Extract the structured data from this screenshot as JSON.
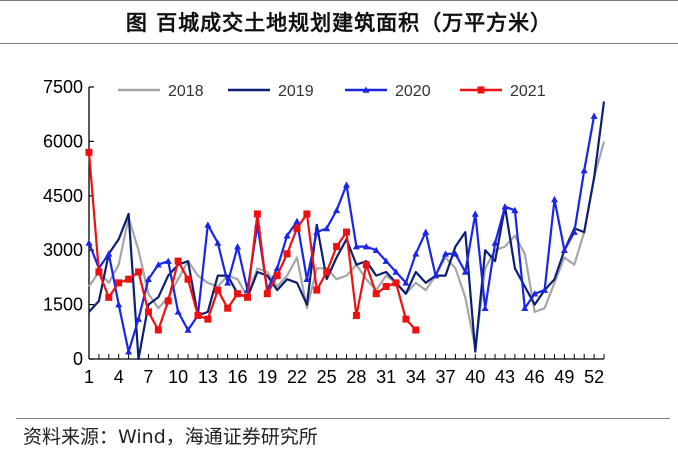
{
  "title": "图  百城成交土地规划建筑面积（万平方米）",
  "source": "资料来源：Wind，海通证券研究所",
  "chart_data": {
    "type": "line",
    "title": "图  百城成交土地规划建筑面积（万平方米）",
    "xlabel": "",
    "ylabel": "",
    "xlim": [
      1,
      53
    ],
    "ylim": [
      0,
      7500
    ],
    "y_ticks": [
      "0",
      "1500",
      "3000",
      "4500",
      "6000",
      "7500"
    ],
    "x_ticks": [
      "1",
      "4",
      "7",
      "10",
      "13",
      "16",
      "19",
      "22",
      "25",
      "28",
      "31",
      "34",
      "37",
      "40",
      "43",
      "46",
      "49",
      "52"
    ],
    "legend_position": "top",
    "series": [
      {
        "name": "2018",
        "color": "#a6a6a6",
        "marker": "none",
        "values": [
          2000,
          2400,
          2100,
          2600,
          3900,
          3000,
          1800,
          1400,
          1700,
          2200,
          2700,
          2300,
          2100,
          2000,
          2300,
          2200,
          1700,
          2500,
          2400,
          2000,
          2300,
          2800,
          1400,
          2500,
          2500,
          2200,
          2300,
          2600,
          2200,
          1900,
          2300,
          2100,
          1800,
          2100,
          1900,
          2300,
          2800,
          2500,
          1700,
          300,
          2500,
          3000,
          3100,
          3400,
          2900,
          1300,
          1400,
          2100,
          2800,
          2600,
          3500,
          5000,
          6000
        ]
      },
      {
        "name": "2019",
        "color": "#0d1f73",
        "marker": "none",
        "values": [
          1300,
          1600,
          2900,
          3300,
          4000,
          0,
          1500,
          1700,
          2300,
          2600,
          2700,
          1200,
          1300,
          2300,
          2300,
          1800,
          1700,
          2400,
          2300,
          1900,
          2200,
          2100,
          1500,
          3700,
          2200,
          2800,
          3300,
          2600,
          2700,
          2300,
          2400,
          2100,
          1800,
          2400,
          2100,
          2300,
          2300,
          3100,
          3500,
          200,
          3000,
          2700,
          4200,
          2500,
          2000,
          1500,
          1900,
          2200,
          3000,
          3600,
          3500,
          5000,
          7100
        ]
      },
      {
        "name": "2020",
        "color": "#1a26e6",
        "marker": "triangle",
        "values": [
          3200,
          2500,
          2900,
          1500,
          200,
          1100,
          2200,
          2600,
          2700,
          1300,
          800,
          1200,
          3700,
          3200,
          2100,
          3100,
          1900,
          3700,
          1900,
          2500,
          3400,
          3800,
          2200,
          3500,
          3600,
          4100,
          4800,
          3100,
          3100,
          3000,
          2700,
          2400,
          2100,
          2900,
          3500,
          2300,
          2900,
          2900,
          2400,
          4000,
          1400,
          3200,
          4200,
          4100,
          1400,
          1800,
          1900,
          4400,
          3000,
          3500,
          5200,
          6700
        ]
      },
      {
        "name": "2021",
        "color": "#ee1111",
        "marker": "square",
        "values": [
          5700,
          2400,
          1700,
          2100,
          2200,
          2400,
          1300,
          800,
          1600,
          2700,
          2200,
          1200,
          1100,
          1900,
          1400,
          1800,
          1700,
          4000,
          1800,
          2300,
          2900,
          3600,
          4000,
          1900,
          2400,
          3100,
          3500,
          1200,
          2600,
          1800,
          2000,
          2100,
          1100,
          800
        ]
      }
    ]
  }
}
